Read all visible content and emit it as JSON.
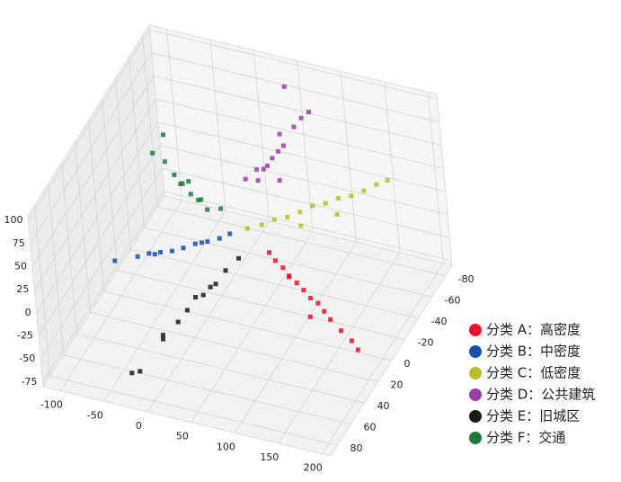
{
  "chart_data": {
    "type": "scatter3d",
    "xlim": [
      -120,
      210
    ],
    "ylim": [
      -90,
      90
    ],
    "zlim": [
      -80,
      105
    ],
    "xticks": [
      -100,
      -50,
      0,
      50,
      100,
      150,
      200
    ],
    "yticks": [
      -80,
      -60,
      -40,
      -20,
      0,
      20,
      40,
      60,
      80
    ],
    "zticks": [
      -75,
      -50,
      -25,
      0,
      25,
      50,
      75,
      100
    ],
    "grid": true,
    "legend": "lower right",
    "series": [
      {
        "name": "分类 A：高密度",
        "color": "#e8112d",
        "x": [
          60,
          70,
          80,
          90,
          100,
          110,
          120,
          130,
          140,
          150,
          165,
          180,
          190,
          95,
          125
        ],
        "y": [
          -20,
          -16,
          -14,
          -10,
          -8,
          -5,
          -2,
          0,
          4,
          8,
          12,
          16,
          20,
          -4,
          6
        ],
        "z": [
          -20,
          -22,
          -25,
          -27,
          -30,
          -32,
          -35,
          -36,
          -38,
          -40,
          -44,
          -47,
          -50,
          -20,
          -45
        ]
      },
      {
        "name": "分类 B：中密度",
        "color": "#1a4fa8",
        "x": [
          -75,
          -55,
          -45,
          -35,
          -25,
          -15,
          -5,
          5,
          15,
          23,
          -40,
          0
        ],
        "y": [
          32,
          24,
          20,
          16,
          12,
          8,
          3,
          -2,
          -7,
          -12,
          18,
          0
        ],
        "z": [
          0,
          0,
          1,
          0,
          -1,
          0,
          1,
          0,
          0,
          1,
          -1,
          0
        ]
      },
      {
        "name": "分类 C：低密度",
        "color": "#b9bd2a",
        "x": [
          53,
          65,
          75,
          85,
          95,
          105,
          115,
          125,
          135,
          145,
          155,
          164,
          100,
          130
        ],
        "y": [
          -2,
          -8,
          -14,
          -20,
          -26,
          -32,
          -38,
          -44,
          -50,
          -56,
          -62,
          -67,
          -20,
          -35
        ],
        "z": [
          25,
          25,
          26,
          24,
          25,
          27,
          25,
          26,
          24,
          25,
          27,
          28,
          18,
          20
        ]
      },
      {
        "name": "分类 D：公共建筑",
        "color": "#9b3fa8",
        "x": [
          45,
          55,
          60,
          50,
          65,
          70,
          40,
          58,
          62,
          75,
          80,
          85,
          50,
          68
        ],
        "y": [
          -30,
          -28,
          -35,
          -25,
          -38,
          -40,
          -20,
          -30,
          -45,
          -50,
          -55,
          -60,
          -70,
          -33
        ],
        "z": [
          55,
          60,
          65,
          50,
          70,
          75,
          55,
          62,
          80,
          85,
          90,
          92,
          100,
          45
        ]
      },
      {
        "name": "分类 E：旧城区",
        "color": "#1a1a1a",
        "x": [
          -4,
          0,
          3,
          8,
          12,
          16,
          20,
          -10,
          5,
          10,
          -37,
          -30
        ],
        "y": [
          57,
          40,
          30,
          13,
          0,
          -10,
          -24,
          50,
          20,
          5,
          65,
          62
        ],
        "z": [
          -40,
          -40,
          -38,
          -40,
          -42,
          -38,
          -40,
          -45,
          -35,
          -40,
          -75,
          -75
        ]
      },
      {
        "name": "分类 F：交通",
        "color": "#1d7a3c",
        "x": [
          -79,
          -60,
          -45,
          -30,
          -15,
          0,
          10,
          24,
          -20,
          -35,
          -70,
          -5
        ],
        "y": [
          -34,
          -28,
          -22,
          -15,
          -8,
          -4,
          0,
          -2,
          -12,
          -18,
          -40,
          -6
        ],
        "z": [
          40,
          42,
          38,
          40,
          40,
          42,
          38,
          40,
          48,
          35,
          55,
          38
        ]
      }
    ]
  }
}
